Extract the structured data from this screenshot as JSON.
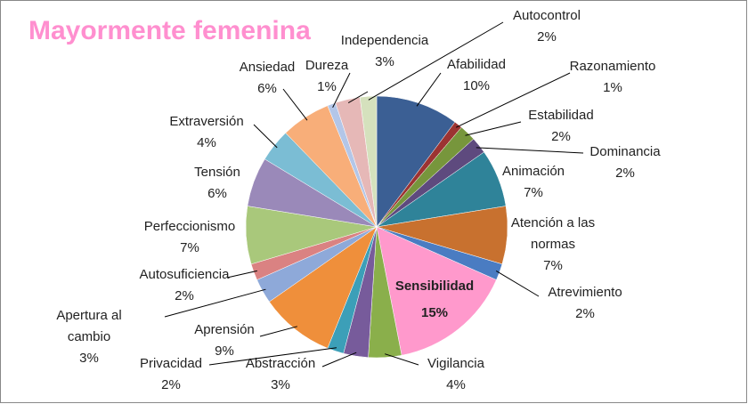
{
  "chart_data": {
    "type": "pie",
    "title": "Mayormente femenina",
    "categories": [
      "Afabilidad",
      "Razonamiento",
      "Estabilidad",
      "Dominancia",
      "Animación",
      "Atención a las normas",
      "Atrevimiento",
      "Sensibilidad",
      "Vigilancia",
      "Abstracción",
      "Privacidad",
      "Aprensión",
      "Apertura al cambio",
      "Autosuficiencia",
      "Perfeccionismo",
      "Tensión",
      "Extraversión",
      "Ansiedad",
      "Dureza",
      "Independencia",
      "Autocontrol"
    ],
    "values": [
      10,
      1,
      2,
      2,
      7,
      7,
      2,
      15,
      4,
      3,
      2,
      9,
      3,
      2,
      7,
      6,
      4,
      6,
      1,
      3,
      2
    ],
    "value_labels": [
      "10%",
      "1%",
      "2%",
      "2%",
      "7%",
      "7%",
      "2%",
      "15%",
      "4%",
      "3%",
      "2%",
      "9%",
      "3%",
      "2%",
      "7%",
      "6%",
      "4%",
      "6%",
      "1%",
      "3%",
      "2%"
    ],
    "colors": [
      "#3b5f94",
      "#9c3332",
      "#77963c",
      "#5e4a7e",
      "#2f8399",
      "#c8712f",
      "#4a7cc2",
      "#ff99cc",
      "#8aaf4b",
      "#775b9b",
      "#3c9fb8",
      "#ef8f3b",
      "#8ea9d9",
      "#da8282",
      "#a9c87b",
      "#9a89b9",
      "#7bbdd4",
      "#f8ae79",
      "#b3c6e8",
      "#e6b8b7",
      "#d5e1bd"
    ]
  }
}
